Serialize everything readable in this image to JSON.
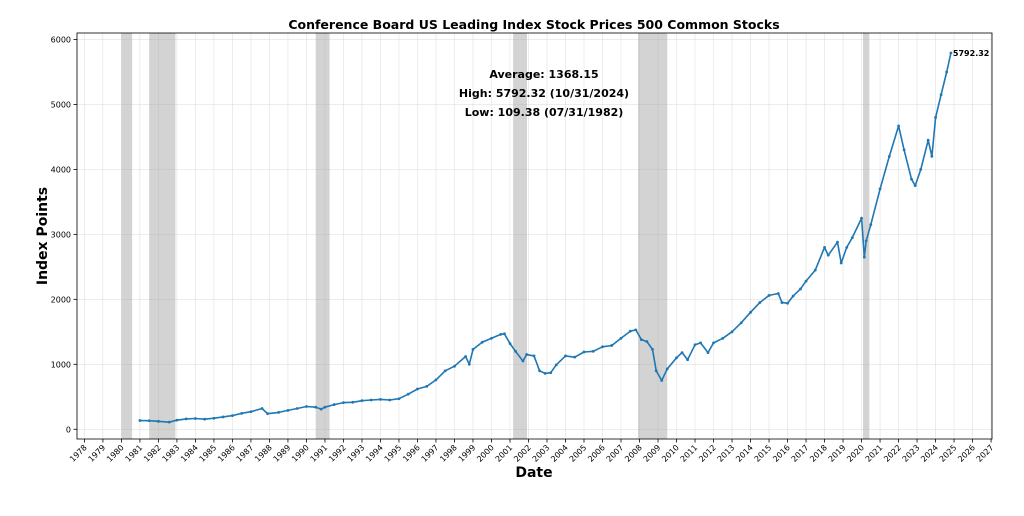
{
  "chart_data": {
    "type": "line",
    "title": "Conference Board US Leading Index Stock Prices 500 Common Stocks",
    "xlabel": "Date",
    "ylabel": "Index Points",
    "xlim": [
      1977.6,
      2027.05
    ],
    "ylim": [
      -150,
      6100
    ],
    "grid": true,
    "x_ticks": [
      "1978",
      "1979",
      "1980",
      "1981",
      "1982",
      "1983",
      "1984",
      "1985",
      "1986",
      "1987",
      "1988",
      "1989",
      "1990",
      "1991",
      "1992",
      "1993",
      "1994",
      "1995",
      "1996",
      "1997",
      "1998",
      "1999",
      "2000",
      "2001",
      "2002",
      "2003",
      "2004",
      "2005",
      "2006",
      "2007",
      "2008",
      "2009",
      "2010",
      "2011",
      "2012",
      "2013",
      "2014",
      "2015",
      "2016",
      "2017",
      "2018",
      "2019",
      "2020",
      "2021",
      "2022",
      "2023",
      "2024",
      "2025",
      "2026",
      "2027"
    ],
    "y_ticks": [
      0,
      1000,
      2000,
      3000,
      4000,
      5000,
      6000
    ],
    "line_color": "#1f77b4",
    "recession_color": "#d3d3d3",
    "recessions": [
      [
        1980.0,
        1980.58
      ],
      [
        1981.5,
        1982.92
      ],
      [
        1990.5,
        1991.25
      ],
      [
        2001.17,
        2001.92
      ],
      [
        2007.92,
        2009.5
      ],
      [
        2020.08,
        2020.42
      ]
    ],
    "series": [
      {
        "x": [
          1981.0,
          1981.5,
          1982.0,
          1982.58,
          1983.0,
          1983.5,
          1984.0,
          1984.5,
          1985.0,
          1985.5,
          1986.0,
          1986.5,
          1987.0,
          1987.6,
          1987.9,
          1988.5,
          1989.0,
          1989.5,
          1990.0,
          1990.5,
          1990.8,
          1991.0,
          1991.5,
          1992.0,
          1992.5,
          1993.0,
          1993.5,
          1994.0,
          1994.5,
          1995.0,
          1995.5,
          1996.0,
          1996.5,
          1997.0,
          1997.5,
          1998.0,
          1998.6,
          1998.8,
          1999.0,
          1999.5,
          2000.0,
          2000.5,
          2000.7,
          2001.0,
          2001.3,
          2001.7,
          2001.9,
          2002.3,
          2002.6,
          2002.9,
          2003.2,
          2003.5,
          2004.0,
          2004.5,
          2005.0,
          2005.5,
          2006.0,
          2006.5,
          2007.0,
          2007.5,
          2007.8,
          2008.1,
          2008.4,
          2008.7,
          2008.9,
          2009.2,
          2009.5,
          2010.0,
          2010.3,
          2010.6,
          2011.0,
          2011.3,
          2011.7,
          2012.0,
          2012.5,
          2013.0,
          2013.5,
          2014.0,
          2014.5,
          2015.0,
          2015.5,
          2015.7,
          2016.0,
          2016.3,
          2016.7,
          2017.0,
          2017.5,
          2018.0,
          2018.2,
          2018.7,
          2018.9,
          2019.2,
          2019.5,
          2020.0,
          2020.15,
          2020.25,
          2020.5,
          2021.0,
          2021.5,
          2022.0,
          2022.3,
          2022.7,
          2022.9,
          2023.2,
          2023.6,
          2023.8,
          2024.0,
          2024.3,
          2024.6,
          2024.83
        ],
        "values": [
          134,
          131,
          122,
          109.38,
          140,
          160,
          165,
          155,
          170,
          190,
          210,
          245,
          270,
          320,
          240,
          260,
          290,
          320,
          350,
          340,
          310,
          340,
          380,
          410,
          415,
          440,
          450,
          460,
          450,
          470,
          540,
          620,
          660,
          760,
          900,
          970,
          1120,
          1000,
          1230,
          1340,
          1400,
          1460,
          1470,
          1320,
          1200,
          1050,
          1150,
          1130,
          900,
          860,
          870,
          990,
          1130,
          1110,
          1190,
          1200,
          1270,
          1290,
          1400,
          1510,
          1530,
          1380,
          1350,
          1230,
          900,
          750,
          930,
          1100,
          1180,
          1070,
          1300,
          1330,
          1180,
          1330,
          1400,
          1500,
          1640,
          1800,
          1950,
          2060,
          2090,
          1950,
          1940,
          2050,
          2160,
          2280,
          2450,
          2800,
          2680,
          2880,
          2560,
          2800,
          2950,
          3250,
          2650,
          2900,
          3150,
          3700,
          4200,
          4670,
          4300,
          3850,
          3750,
          4000,
          4450,
          4200,
          4800,
          5150,
          5500,
          5792.32
        ]
      }
    ],
    "stats": {
      "average": "Average: 1368.15",
      "high": "High: 5792.32 (10/31/2024)",
      "low": "Low: 109.38 (07/31/1982)"
    },
    "end_label": "5792.32"
  }
}
